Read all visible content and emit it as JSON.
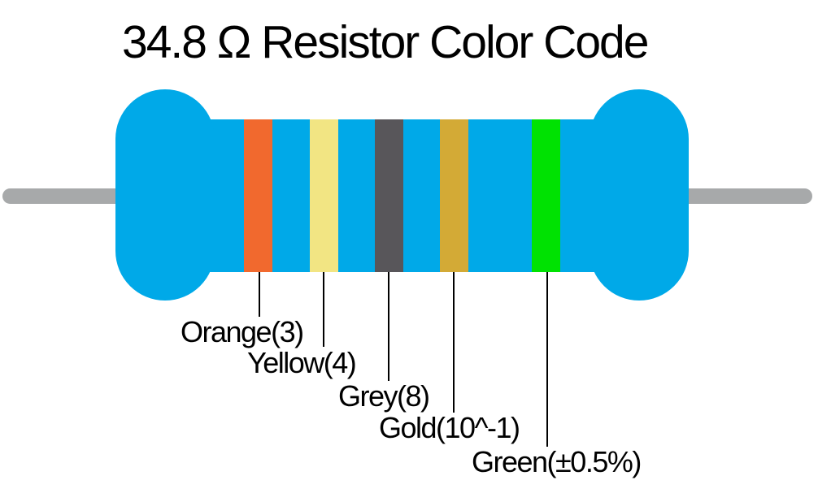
{
  "title": "34.8 Ω Resistor Color Code",
  "resistor": {
    "body_color": "#00A9E8",
    "lead_color": "#A7A9AA",
    "bands": [
      {
        "id": "orange",
        "label": "Orange(3)",
        "color": "#F1692E"
      },
      {
        "id": "yellow",
        "label": "Yellow(4)",
        "color": "#F2E583"
      },
      {
        "id": "grey",
        "label": "Grey(8)",
        "color": "#58565A"
      },
      {
        "id": "gold",
        "label": "Gold(10^-1)",
        "color": "#D3AA36"
      },
      {
        "id": "green",
        "label": "Green(±0.5%)",
        "color": "#00E202"
      }
    ]
  }
}
